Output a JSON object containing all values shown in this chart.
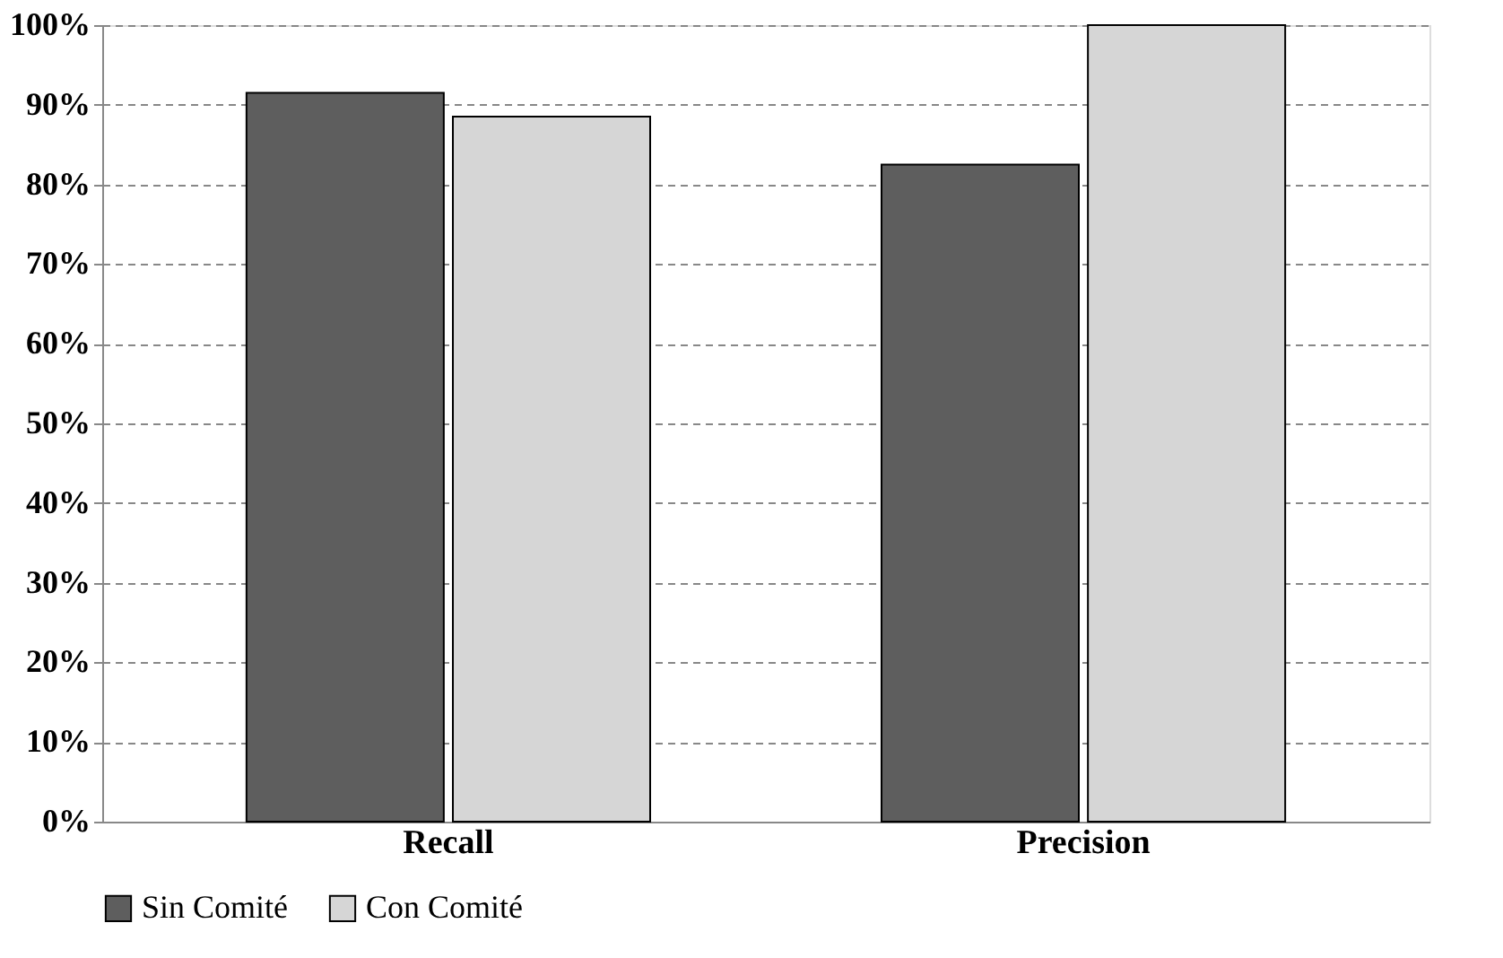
{
  "chart_data": {
    "type": "bar",
    "categories": [
      "Recall",
      "Precision"
    ],
    "series": [
      {
        "name": "Sin Comité",
        "color": "#5e5e5e",
        "values": [
          91.5,
          82.5
        ]
      },
      {
        "name": "Con Comité",
        "color": "#d6d6d6",
        "values": [
          88.5,
          100
        ]
      }
    ],
    "ylim": [
      0,
      100
    ],
    "yticks": [
      {
        "value": 0,
        "label": "0%"
      },
      {
        "value": 10,
        "label": "10%"
      },
      {
        "value": 20,
        "label": "20%"
      },
      {
        "value": 30,
        "label": "30%"
      },
      {
        "value": 40,
        "label": "40%"
      },
      {
        "value": 50,
        "label": "50%"
      },
      {
        "value": 60,
        "label": "60%"
      },
      {
        "value": 70,
        "label": "70%"
      },
      {
        "value": 80,
        "label": "80%"
      },
      {
        "value": 90,
        "label": "90%"
      },
      {
        "value": 100,
        "label": "100%"
      }
    ],
    "grid": "y",
    "legend": "bottom"
  }
}
